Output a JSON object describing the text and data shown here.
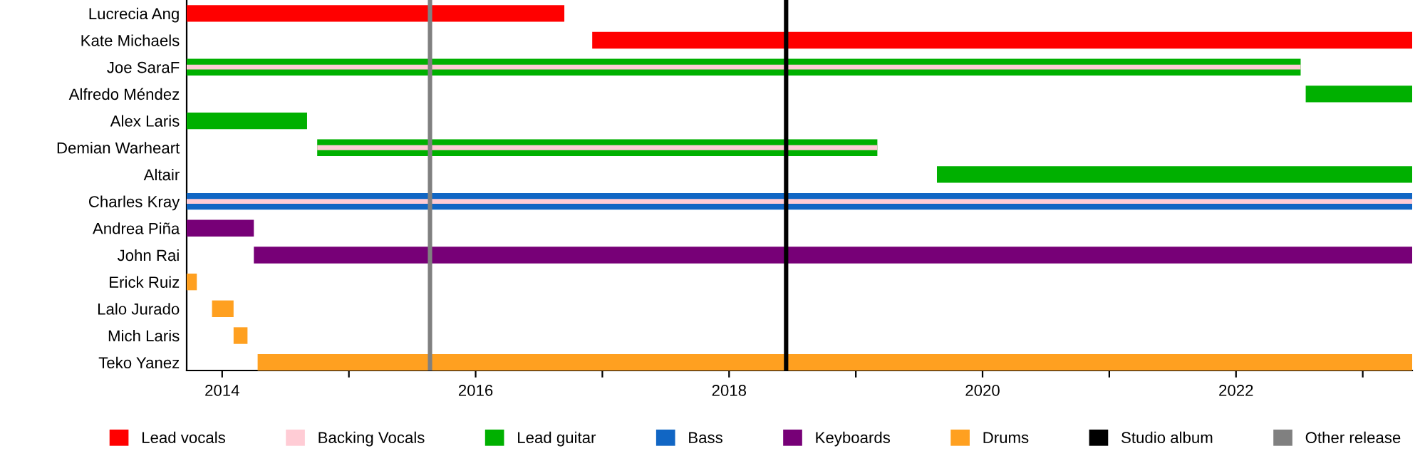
{
  "chart_data": {
    "type": "bar",
    "orientation": "horizontal",
    "categories": [
      "Lucrecia Ang",
      "Kate Michaels",
      "Joe SaraF",
      "Alfredo Méndez",
      "Alex Laris",
      "Demian Warheart",
      "Altair",
      "Charles Kray",
      "Andrea Piña",
      "John Rai",
      "Erick Ruiz",
      "Lalo Jurado",
      "Mich Laris",
      "Teko Yanez"
    ],
    "series": [
      {
        "name": "Lead vocals",
        "color": "#ff0000",
        "base": [
          2013.72,
          2016.92,
          null,
          null,
          null,
          null,
          null,
          null,
          null,
          null,
          null,
          null,
          null,
          null
        ],
        "values": [
          2.98,
          6.47,
          null,
          null,
          null,
          null,
          null,
          null,
          null,
          null,
          null,
          null,
          null,
          null
        ]
      },
      {
        "name": "Backing Vocals",
        "color": "#ffccd5",
        "base": [
          null,
          null,
          2013.72,
          null,
          null,
          2014.75,
          null,
          2013.72,
          null,
          null,
          null,
          null,
          null,
          null
        ],
        "values": [
          null,
          null,
          8.79,
          null,
          null,
          4.42,
          null,
          9.67,
          null,
          null,
          null,
          null,
          null,
          null
        ]
      },
      {
        "name": "Lead guitar",
        "color": "#00b000",
        "base": [
          null,
          null,
          2013.72,
          2022.55,
          2013.72,
          2014.75,
          2019.64,
          null,
          null,
          null,
          null,
          null,
          null,
          null
        ],
        "values": [
          null,
          null,
          8.79,
          0.84,
          0.95,
          4.42,
          3.75,
          null,
          null,
          null,
          null,
          null,
          null,
          null
        ]
      },
      {
        "name": "Bass",
        "color": "#1166c4",
        "base": [
          null,
          null,
          null,
          null,
          null,
          null,
          null,
          2013.72,
          null,
          null,
          null,
          null,
          null,
          null
        ],
        "values": [
          null,
          null,
          null,
          null,
          null,
          null,
          null,
          9.67,
          null,
          null,
          null,
          null,
          null,
          null
        ]
      },
      {
        "name": "Keyboards",
        "color": "#770077",
        "base": [
          null,
          null,
          null,
          null,
          null,
          null,
          null,
          null,
          2013.72,
          2014.25,
          null,
          null,
          null,
          null
        ],
        "values": [
          null,
          null,
          null,
          null,
          null,
          null,
          null,
          null,
          0.53,
          9.14,
          null,
          null,
          null,
          null
        ]
      },
      {
        "name": "Drums",
        "color": "#ffa020",
        "base": [
          null,
          null,
          null,
          null,
          null,
          null,
          null,
          null,
          null,
          null,
          2013.72,
          2013.92,
          2014.09,
          2014.28
        ],
        "values": [
          null,
          null,
          null,
          null,
          null,
          null,
          null,
          null,
          null,
          null,
          0.08,
          0.17,
          0.11,
          9.11
        ]
      }
    ],
    "ref_lines": [
      {
        "axis": "x",
        "value": 2018.45,
        "label": "Studio album",
        "color": "#000000"
      },
      {
        "axis": "x",
        "value": 2015.64,
        "label": "Other release",
        "color": "#808080"
      }
    ],
    "xlim": [
      2013.72,
      2023.39
    ],
    "xticks": [
      2014,
      {
        "value": 2015,
        "label": null
      },
      2016,
      {
        "value": 2017,
        "label": null
      },
      2018,
      {
        "value": 2019,
        "label": null
      },
      2020,
      {
        "value": 2021,
        "label": null
      },
      2022,
      {
        "value": 2023,
        "label": null
      }
    ],
    "legend": "bottom",
    "grid": false
  }
}
